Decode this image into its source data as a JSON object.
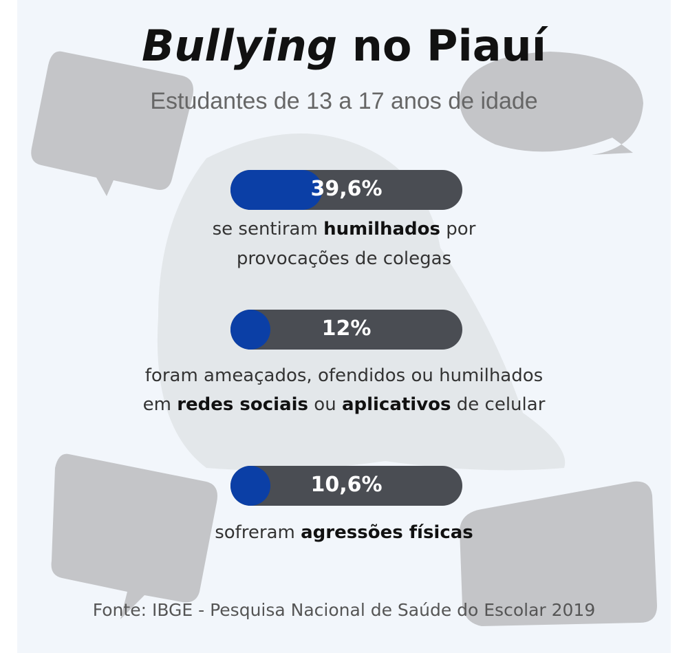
{
  "chart_data": {
    "type": "bar",
    "title": [
      {
        "text": "Bullying",
        "italic": true
      },
      {
        "text": " no Piauí"
      }
    ],
    "subtitle": "Estudantes de 13 a 17 anos de idade",
    "values": [
      39.6,
      12,
      10.6
    ],
    "value_labels": [
      "39,6%",
      "12%",
      "10,6%"
    ],
    "xlim": [
      0,
      100
    ],
    "color": "#0b3fa6",
    "track_color": "#4a4d53",
    "descriptions": [
      [
        [
          {
            "text": "se sentiram "
          },
          {
            "text": "humilhados",
            "bold": true
          },
          {
            "text": " por"
          }
        ],
        [
          {
            "text": "provocações de colegas"
          }
        ]
      ],
      [
        [
          {
            "text": "foram ameaçados, ofendidos ou humilhados"
          }
        ],
        [
          {
            "text": "em "
          },
          {
            "text": "redes sociais",
            "bold": true
          },
          {
            "text": " ou "
          },
          {
            "text": "aplicativos",
            "bold": true
          },
          {
            "text": " de celular"
          }
        ]
      ],
      [
        [
          {
            "text": "sofreram "
          },
          {
            "text": "agressões físicas",
            "bold": true
          }
        ]
      ]
    ],
    "source": "Fonte: IBGE - Pesquisa Nacional de Saúde do Escolar 2019"
  }
}
